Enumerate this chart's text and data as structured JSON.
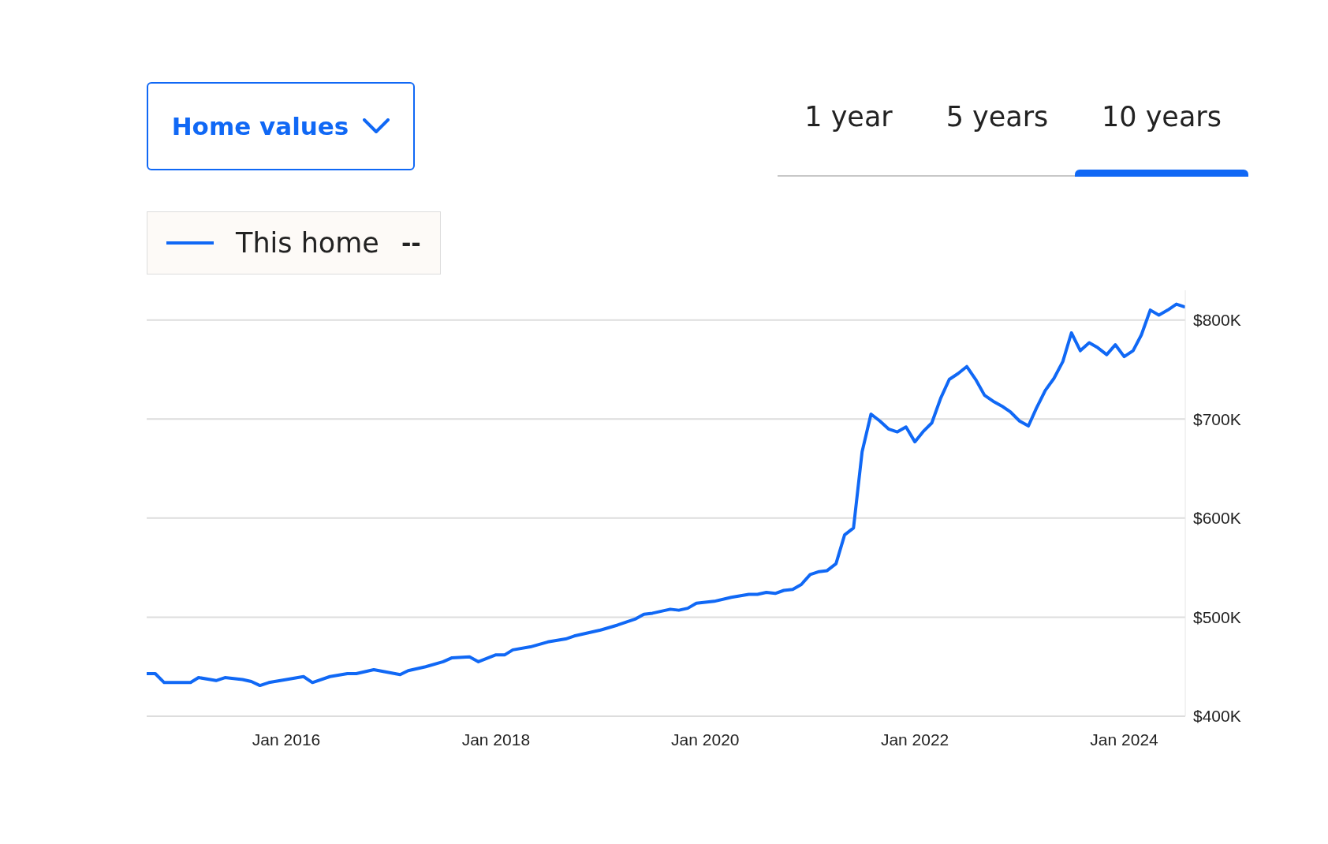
{
  "chart_data": {
    "type": "line",
    "title": "Home values",
    "annotations": [
      "1 year",
      "5 years",
      "10 years",
      "--"
    ],
    "x": [
      "2014-09",
      "2014-10",
      "2014-11",
      "2015-01",
      "2015-02",
      "2015-03",
      "2015-05",
      "2015-06",
      "2015-08",
      "2015-09",
      "2015-10",
      "2015-11",
      "2016-01",
      "2016-03",
      "2016-04",
      "2016-06",
      "2016-08",
      "2016-09",
      "2016-11",
      "2017-02",
      "2017-03",
      "2017-05",
      "2017-07",
      "2017-08",
      "2017-10",
      "2017-11",
      "2018-01",
      "2018-02",
      "2018-03",
      "2018-05",
      "2018-07",
      "2018-09",
      "2018-10",
      "2019-01",
      "2019-03",
      "2019-05",
      "2019-06",
      "2019-07",
      "2019-09",
      "2019-10",
      "2019-11",
      "2019-12",
      "2020-02",
      "2020-04",
      "2020-06",
      "2020-07",
      "2020-08",
      "2020-09",
      "2020-10",
      "2020-11",
      "2020-12",
      "2021-01",
      "2021-02",
      "2021-03",
      "2021-04",
      "2021-05",
      "2021-06",
      "2021-07",
      "2021-08",
      "2021-09",
      "2021-10",
      "2021-11",
      "2021-12",
      "2022-01",
      "2022-02",
      "2022-03",
      "2022-04",
      "2022-05",
      "2022-06",
      "2022-07",
      "2022-08",
      "2022-09",
      "2022-10",
      "2022-11",
      "2022-12",
      "2023-01",
      "2023-02",
      "2023-03",
      "2023-04",
      "2023-05",
      "2023-06",
      "2023-07",
      "2023-08",
      "2023-09",
      "2023-10",
      "2023-11",
      "2023-12",
      "2024-01",
      "2024-02",
      "2024-03",
      "2024-04",
      "2024-05",
      "2024-06",
      "2024-07",
      "2024-08"
    ],
    "series": [
      {
        "name": "This home",
        "color": "#1068f5",
        "values": [
          443,
          443,
          434,
          434,
          434,
          439,
          436,
          439,
          437,
          435,
          431,
          434,
          437,
          440,
          434,
          440,
          443,
          443,
          447,
          442,
          446,
          450,
          455,
          459,
          460,
          455,
          462,
          462,
          467,
          470,
          475,
          478,
          481,
          487,
          492,
          498,
          503,
          504,
          508,
          507,
          509,
          514,
          516,
          520,
          523,
          523,
          525,
          524,
          527,
          528,
          533,
          543,
          546,
          547,
          554,
          583,
          590,
          667,
          705,
          698,
          690,
          687,
          692,
          677,
          688,
          696,
          721,
          740,
          746,
          753,
          740,
          724,
          718,
          713,
          707,
          698,
          693,
          711,
          729,
          741,
          758,
          787,
          769,
          777,
          772,
          765,
          775,
          763,
          769,
          785,
          810,
          805,
          810,
          816,
          813
        ]
      }
    ],
    "xlim": [
      "2014-09",
      "2024-08"
    ],
    "xticks": [
      {
        "value": "2016-01",
        "label": "Jan 2016"
      },
      {
        "value": "2018-01",
        "label": "Jan 2018"
      },
      {
        "value": "2020-01",
        "label": "Jan 2020"
      },
      {
        "value": "2022-01",
        "label": "Jan 2022"
      },
      {
        "value": "2024-01",
        "label": "Jan 2024"
      }
    ],
    "ylim": [
      400,
      830
    ],
    "yticks": [
      {
        "value": 400,
        "label": "$400K"
      },
      {
        "value": 500,
        "label": "$500K"
      },
      {
        "value": 600,
        "label": "$600K"
      },
      {
        "value": 700,
        "label": "$700K"
      },
      {
        "value": 800,
        "label": "$800K"
      }
    ],
    "grid": "y",
    "legend": "top left",
    "marker": "none",
    "line_style": "solid"
  }
}
